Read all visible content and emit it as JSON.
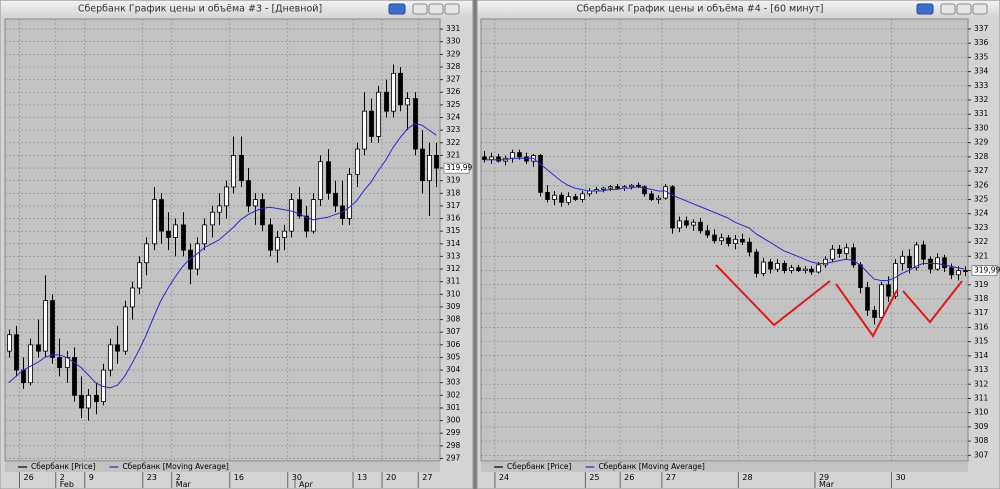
{
  "chart_data": [
    {
      "type": "candlestick",
      "title": "Сбербанк График цены и объёма #3 - [Дневной]",
      "categories": [
        null,
        null,
        "26",
        null,
        null,
        null,
        null,
        "2",
        null,
        null,
        null,
        "9",
        null,
        null,
        null,
        null,
        null,
        null,
        null,
        "23",
        null,
        null,
        null,
        "2",
        null,
        null,
        null,
        null,
        null,
        null,
        null,
        "16",
        null,
        null,
        null,
        null,
        null,
        null,
        null,
        "30",
        null,
        null,
        null,
        null,
        null,
        null,
        null,
        null,
        "13",
        null,
        null,
        null,
        "20",
        null,
        null,
        null,
        null,
        "27",
        null,
        null
      ],
      "months": [
        null,
        null,
        null,
        null,
        null,
        null,
        null,
        "Feb",
        null,
        null,
        null,
        null,
        null,
        null,
        null,
        null,
        null,
        null,
        null,
        null,
        null,
        null,
        null,
        "Mar",
        null,
        null,
        null,
        null,
        null,
        null,
        null,
        null,
        null,
        null,
        null,
        null,
        null,
        null,
        null,
        null,
        "Apr",
        null,
        null,
        null,
        null,
        null,
        null,
        null,
        null,
        null,
        null,
        null,
        null,
        null,
        null,
        null,
        null,
        null,
        null,
        null
      ],
      "series": [
        {
          "name": "Сбербанк [Price]",
          "color": "#000000",
          "open": [
            305.5,
            306.8,
            304,
            303,
            306,
            305.5,
            309.5,
            305,
            304.2,
            305,
            302,
            301,
            302,
            301.5,
            304,
            306,
            305.5,
            309,
            310.5,
            312.5,
            314,
            317.5,
            315,
            314.5,
            315.5,
            313.5,
            312,
            314,
            315.5,
            316.5,
            317,
            318.5,
            321,
            319,
            317,
            317.5,
            315.5,
            313.5,
            314.5,
            315,
            317.5,
            316.2,
            315,
            317.5,
            320.5,
            318,
            317,
            316,
            319.5,
            321.5,
            324.5,
            322.5,
            326,
            324.5,
            327.5,
            325,
            325.5,
            321.5,
            319,
            321
          ],
          "high": [
            307.2,
            307.5,
            305,
            306.5,
            308,
            311.5,
            310,
            306.5,
            305.5,
            305.8,
            303.5,
            302.5,
            303,
            304.5,
            306.5,
            307.5,
            309.5,
            311,
            313,
            314.5,
            318.5,
            318,
            316.5,
            316,
            316.5,
            314,
            314.5,
            316,
            317,
            318,
            319,
            322.5,
            322.5,
            320,
            318,
            318,
            316,
            315,
            315.5,
            318,
            318.5,
            317,
            318,
            321,
            321.5,
            319,
            319,
            320,
            322,
            326,
            325.5,
            326.5,
            327,
            328.2,
            328,
            326,
            326,
            323,
            322,
            322
          ],
          "low": [
            305,
            303.5,
            302.5,
            302.8,
            305,
            305,
            304.5,
            303.5,
            303,
            301.5,
            300.2,
            300,
            300.5,
            301.2,
            303.5,
            304.5,
            305.2,
            308,
            310,
            311.5,
            313.5,
            314,
            313.5,
            313,
            313,
            310.8,
            311.5,
            313.5,
            314.5,
            315.5,
            316,
            318,
            318.5,
            316.5,
            315.5,
            315,
            313,
            312.5,
            313.5,
            314.5,
            316,
            314.5,
            314.8,
            317,
            317.5,
            316.5,
            315.5,
            315.5,
            318.5,
            321,
            322,
            322,
            324,
            324,
            324.5,
            323,
            321,
            318,
            316.2,
            318.5
          ],
          "close": [
            306.8,
            304,
            303,
            306,
            305.5,
            309.5,
            305,
            304.2,
            305,
            302,
            301,
            302,
            301.5,
            304,
            306,
            305.5,
            309,
            310.5,
            312.5,
            314,
            317.5,
            315,
            314.5,
            315.5,
            313.5,
            312,
            314,
            315.5,
            316.5,
            317,
            318.5,
            321,
            319,
            317,
            317.5,
            315.5,
            313.5,
            314.5,
            315,
            317.5,
            316.2,
            315,
            317.5,
            320.5,
            318,
            317,
            316,
            319.5,
            321.5,
            324.5,
            322.5,
            326,
            324.5,
            327.5,
            325,
            325.5,
            321.5,
            319,
            321,
            319.99
          ]
        },
        {
          "name": "Сбербанк [Moving Average]",
          "color": "#2a2ad0",
          "values": [
            303,
            303.5,
            304,
            304.3,
            304.6,
            305,
            305.2,
            305.2,
            305,
            304.6,
            304.2,
            303.6,
            303,
            302.7,
            302.6,
            302.8,
            303.5,
            304.5,
            305.6,
            306.8,
            308.2,
            309.5,
            310.5,
            311.4,
            312.2,
            312.8,
            313.2,
            313.7,
            314,
            314.3,
            314.8,
            315.3,
            315.9,
            316.3,
            316.6,
            316.8,
            316.9,
            316.8,
            316.7,
            316.6,
            316.4,
            316.1,
            315.9,
            316,
            316.1,
            316.3,
            316.5,
            316.9,
            317.4,
            318.2,
            318.9,
            319.8,
            320.6,
            321.6,
            322.4,
            323.1,
            323.5,
            323.4,
            323,
            322.6
          ]
        }
      ],
      "ylim": [
        296.8,
        331.8
      ],
      "yticks": [
        297,
        298,
        299,
        300,
        301,
        302,
        303,
        304,
        305,
        306,
        307,
        308,
        309,
        310,
        311,
        312,
        313,
        314,
        315,
        316,
        317,
        318,
        319,
        320,
        321,
        322,
        323,
        324,
        325,
        326,
        327,
        328,
        329,
        330,
        331
      ],
      "grid": true,
      "last_price": {
        "value": 319.99,
        "label": "319,99"
      }
    },
    {
      "type": "candlestick",
      "title": "Сбербанк График цены и объёма #4 - [60 минут]",
      "categories": [
        null,
        null,
        "24",
        null,
        null,
        null,
        null,
        null,
        null,
        null,
        null,
        null,
        null,
        null,
        null,
        "25",
        null,
        null,
        null,
        null,
        "26",
        null,
        null,
        null,
        null,
        null,
        "27",
        null,
        null,
        null,
        null,
        null,
        null,
        null,
        null,
        null,
        null,
        "28",
        null,
        null,
        null,
        null,
        null,
        null,
        null,
        null,
        null,
        null,
        "29",
        null,
        null,
        null,
        null,
        null,
        null,
        null,
        null,
        null,
        null,
        "30",
        null,
        null,
        null,
        null,
        null,
        null,
        null,
        null,
        null,
        null
      ],
      "months": [
        null,
        null,
        null,
        null,
        null,
        null,
        null,
        null,
        null,
        null,
        null,
        null,
        null,
        null,
        null,
        null,
        null,
        null,
        null,
        null,
        null,
        null,
        null,
        null,
        null,
        null,
        null,
        null,
        null,
        null,
        null,
        null,
        null,
        null,
        null,
        null,
        null,
        null,
        null,
        null,
        null,
        null,
        null,
        null,
        null,
        null,
        null,
        null,
        "Mar",
        null,
        null,
        null,
        null,
        null,
        null,
        null,
        null,
        null,
        null,
        null,
        null,
        null,
        null,
        null,
        null,
        null,
        null,
        null,
        null,
        null
      ],
      "series": [
        {
          "name": "Сбербанк [Price]",
          "color": "#000000",
          "open": [
            328,
            327.8,
            328,
            327.7,
            327.9,
            328.3,
            328,
            327.7,
            328.1,
            325.5,
            325,
            325.3,
            324.8,
            325.2,
            325,
            325.4,
            325.6,
            325.7,
            325.8,
            325.9,
            325.8,
            325.9,
            326,
            325.9,
            325.4,
            325,
            325.1,
            325.9,
            323,
            323.5,
            323.2,
            323.4,
            322.8,
            322.5,
            322.1,
            322.3,
            321.9,
            322.2,
            322,
            321.3,
            319.8,
            320.6,
            320.1,
            320.5,
            320,
            320.2,
            320,
            320.1,
            319.9,
            320.4,
            320.8,
            321.5,
            321.2,
            321.6,
            320.4,
            318.8,
            317.2,
            316.7,
            319,
            318.2,
            320.5,
            321,
            320.2,
            321.8,
            320.8,
            320.1,
            320.9,
            320.2,
            319.7,
            320
          ],
          "high": [
            328.4,
            328.3,
            328.2,
            328.1,
            328.5,
            328.5,
            328.3,
            328.2,
            328.2,
            326,
            325.6,
            325.5,
            325.5,
            325.4,
            325.6,
            325.8,
            325.9,
            325.9,
            326,
            326.1,
            326,
            326.1,
            326.2,
            326,
            325.6,
            325.3,
            326.1,
            326,
            323.8,
            323.8,
            323.6,
            323.7,
            323.2,
            322.9,
            322.6,
            322.5,
            322.5,
            322.6,
            322.3,
            321.5,
            320.9,
            320.8,
            320.8,
            320.7,
            320.4,
            320.4,
            320.3,
            320.3,
            320.6,
            321,
            321.8,
            321.8,
            321.9,
            321.9,
            320.6,
            319.2,
            317.5,
            319.2,
            319.6,
            320.8,
            321.4,
            321.5,
            322,
            322.1,
            321,
            321.2,
            321.1,
            320.5,
            320.3,
            320.3
          ],
          "low": [
            327.6,
            327.5,
            327.6,
            327.4,
            327.6,
            327.8,
            327.5,
            327.3,
            325.2,
            324.8,
            324.6,
            324.5,
            324.6,
            324.9,
            324.8,
            325.2,
            325.4,
            325.5,
            325.6,
            325.7,
            325.6,
            325.7,
            325.8,
            325.2,
            324.9,
            324.7,
            325,
            322.6,
            322.7,
            323,
            322.8,
            322.6,
            322.3,
            321.9,
            321.8,
            321.7,
            321.5,
            321.8,
            321,
            319.5,
            319.6,
            319.8,
            319.9,
            319.8,
            319.8,
            319.9,
            319.8,
            319.7,
            319.8,
            320.2,
            320.6,
            320.9,
            320.8,
            320.2,
            318.4,
            316.8,
            316.2,
            316.5,
            317.8,
            318,
            320,
            319.8,
            320,
            320.4,
            319.8,
            320,
            319.9,
            319.4,
            319.3,
            319.6
          ],
          "close": [
            327.8,
            328,
            327.7,
            327.9,
            328.3,
            328,
            327.7,
            328.1,
            325.5,
            325,
            325.3,
            324.8,
            325.2,
            325,
            325.4,
            325.6,
            325.7,
            325.8,
            325.9,
            325.8,
            325.9,
            326,
            325.9,
            325.4,
            325,
            325.1,
            325.9,
            323,
            323.5,
            323.2,
            323.4,
            322.8,
            322.5,
            322.1,
            322.3,
            321.9,
            322.2,
            322,
            321.3,
            319.8,
            320.6,
            320.1,
            320.5,
            320,
            320.2,
            320,
            320.1,
            319.9,
            320.4,
            320.8,
            321.5,
            321.2,
            321.6,
            320.4,
            318.8,
            317.2,
            316.7,
            319,
            318.2,
            320.5,
            321,
            320.2,
            321.8,
            320.8,
            320.1,
            320.9,
            320.2,
            319.7,
            320,
            319.99
          ]
        },
        {
          "name": "Сбербанк [Moving Average]",
          "color": "#2a2ad0",
          "values": [
            327.8,
            327.8,
            327.8,
            327.8,
            327.9,
            327.9,
            327.9,
            327.9,
            327.5,
            327.1,
            326.7,
            326.3,
            326,
            325.8,
            325.7,
            325.6,
            325.6,
            325.6,
            325.7,
            325.7,
            325.8,
            325.8,
            325.9,
            325.8,
            325.7,
            325.6,
            325.6,
            325.3,
            325.1,
            324.9,
            324.7,
            324.5,
            324.3,
            324.1,
            323.9,
            323.7,
            323.4,
            323.2,
            323,
            322.6,
            322.3,
            322,
            321.7,
            321.4,
            321.2,
            321,
            320.8,
            320.6,
            320.5,
            320.5,
            320.6,
            320.7,
            320.8,
            320.7,
            320.4,
            319.9,
            319.4,
            319.3,
            319.3,
            319.5,
            319.8,
            320,
            320.3,
            320.5,
            320.5,
            320.5,
            320.4,
            320.3,
            320.2,
            320.1
          ]
        }
      ],
      "ylim": [
        306.6,
        337.7
      ],
      "yticks": [
        307,
        308,
        309,
        310,
        311,
        312,
        313,
        314,
        315,
        316,
        317,
        318,
        319,
        320,
        321,
        322,
        323,
        324,
        325,
        326,
        327,
        328,
        329,
        330,
        331,
        332,
        333,
        334,
        335,
        336,
        337
      ],
      "grid": true,
      "last_price": {
        "value": 319.99,
        "label": "319,99"
      }
    }
  ]
}
